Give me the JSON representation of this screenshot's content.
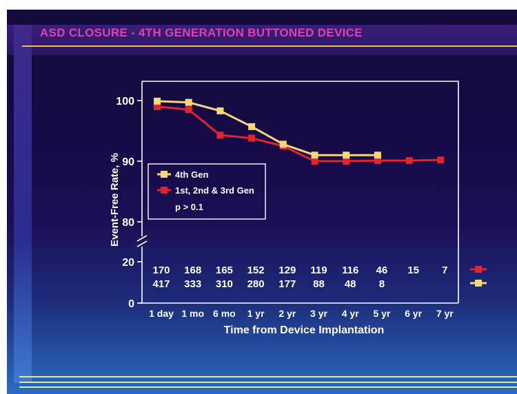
{
  "title": "ASD CLOSURE - 4TH GENERATION BUTTONED DEVICE",
  "chart_data": {
    "type": "line",
    "ylabel": "Event-Free Rate, %",
    "xlabel": "Time from Device Implantation",
    "categories": [
      "1 day",
      "1 mo",
      "6 mo",
      "1 yr",
      "2 yr",
      "3 yr",
      "4 yr",
      "5 yr",
      "6 yr",
      "7 yr"
    ],
    "yticks": [
      "100",
      "90",
      "80",
      "20",
      "0"
    ],
    "ylim": [
      80,
      100
    ],
    "axis_break": true,
    "grid": false,
    "legend_position": "middle-left",
    "series": [
      {
        "name": "4th Gen",
        "color": "#f6d77a",
        "values": [
          99.9,
          99.7,
          98.3,
          95.7,
          92.8,
          91.0,
          91.0,
          91.0,
          null,
          null
        ],
        "at_risk": [
          "417",
          "333",
          "310",
          "280",
          "177",
          "88",
          "48",
          "8",
          "",
          ""
        ]
      },
      {
        "name": "1st, 2nd & 3rd Gen",
        "color": "#e0252e",
        "values": [
          99.0,
          98.5,
          94.3,
          93.8,
          92.5,
          90.0,
          90.0,
          90.1,
          90.1,
          90.2
        ],
        "at_risk": [
          "170",
          "168",
          "165",
          "152",
          "129",
          "119",
          "116",
          "46",
          "15",
          "7"
        ]
      }
    ],
    "annotation": "p > 0.1"
  }
}
